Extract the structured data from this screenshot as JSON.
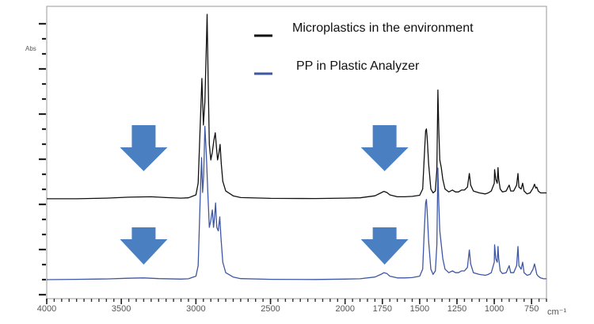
{
  "chart_data": {
    "type": "line",
    "xlabel": "cm⁻¹",
    "ylabel": "Abs",
    "xlim": [
      4000,
      650
    ],
    "ylim": [
      0,
      1.0
    ],
    "x_ticks": [
      4000,
      3500,
      3000,
      2500,
      2000,
      1750,
      1500,
      1250,
      1000,
      750
    ],
    "grid": false,
    "legend_position": "top-right",
    "series": [
      {
        "name": "Microplastics in the environment",
        "color": "#111111",
        "offset": 0.46,
        "points": [
          [
            4000,
            0.0
          ],
          [
            3800,
            0.0
          ],
          [
            3600,
            0.003
          ],
          [
            3450,
            0.008
          ],
          [
            3300,
            0.01
          ],
          [
            3200,
            0.006
          ],
          [
            3100,
            0.003
          ],
          [
            3050,
            0.005
          ],
          [
            3000,
            0.02
          ],
          [
            2985,
            0.08
          ],
          [
            2970,
            0.4
          ],
          [
            2960,
            0.62
          ],
          [
            2950,
            0.38
          ],
          [
            2940,
            0.5
          ],
          [
            2930,
            0.78
          ],
          [
            2925,
            0.95
          ],
          [
            2918,
            0.62
          ],
          [
            2910,
            0.28
          ],
          [
            2900,
            0.2
          ],
          [
            2890,
            0.24
          ],
          [
            2880,
            0.3
          ],
          [
            2870,
            0.34
          ],
          [
            2862,
            0.26
          ],
          [
            2855,
            0.2
          ],
          [
            2845,
            0.24
          ],
          [
            2838,
            0.28
          ],
          [
            2830,
            0.18
          ],
          [
            2820,
            0.09
          ],
          [
            2800,
            0.04
          ],
          [
            2750,
            0.015
          ],
          [
            2700,
            0.006
          ],
          [
            2500,
            0.002
          ],
          [
            2200,
            0.001
          ],
          [
            2000,
            0.003
          ],
          [
            1900,
            0.005
          ],
          [
            1800,
            0.015
          ],
          [
            1760,
            0.03
          ],
          [
            1740,
            0.038
          ],
          [
            1720,
            0.032
          ],
          [
            1700,
            0.02
          ],
          [
            1650,
            0.01
          ],
          [
            1600,
            0.01
          ],
          [
            1550,
            0.012
          ],
          [
            1500,
            0.018
          ],
          [
            1480,
            0.05
          ],
          [
            1470,
            0.2
          ],
          [
            1460,
            0.35
          ],
          [
            1455,
            0.36
          ],
          [
            1450,
            0.32
          ],
          [
            1440,
            0.18
          ],
          [
            1425,
            0.05
          ],
          [
            1410,
            0.03
          ],
          [
            1395,
            0.04
          ],
          [
            1385,
            0.15
          ],
          [
            1378,
            0.56
          ],
          [
            1372,
            0.36
          ],
          [
            1365,
            0.2
          ],
          [
            1355,
            0.16
          ],
          [
            1345,
            0.1
          ],
          [
            1330,
            0.05
          ],
          [
            1305,
            0.035
          ],
          [
            1280,
            0.045
          ],
          [
            1260,
            0.035
          ],
          [
            1240,
            0.035
          ],
          [
            1220,
            0.045
          ],
          [
            1200,
            0.045
          ],
          [
            1180,
            0.06
          ],
          [
            1167,
            0.13
          ],
          [
            1158,
            0.07
          ],
          [
            1140,
            0.04
          ],
          [
            1100,
            0.03
          ],
          [
            1060,
            0.025
          ],
          [
            1040,
            0.03
          ],
          [
            1020,
            0.04
          ],
          [
            1000,
            0.08
          ],
          [
            998,
            0.15
          ],
          [
            990,
            0.1
          ],
          [
            980,
            0.08
          ],
          [
            975,
            0.16
          ],
          [
            970,
            0.1
          ],
          [
            960,
            0.05
          ],
          [
            945,
            0.035
          ],
          [
            920,
            0.04
          ],
          [
            900,
            0.07
          ],
          [
            890,
            0.04
          ],
          [
            870,
            0.04
          ],
          [
            850,
            0.07
          ],
          [
            841,
            0.13
          ],
          [
            835,
            0.06
          ],
          [
            820,
            0.05
          ],
          [
            810,
            0.08
          ],
          [
            800,
            0.04
          ],
          [
            780,
            0.025
          ],
          [
            760,
            0.03
          ],
          [
            740,
            0.055
          ],
          [
            730,
            0.075
          ],
          [
            722,
            0.055
          ],
          [
            715,
            0.06
          ],
          [
            705,
            0.04
          ],
          [
            690,
            0.03
          ],
          [
            670,
            0.03
          ],
          [
            650,
            0.03
          ]
        ]
      },
      {
        "name": "PP in Plastic Analyzer",
        "color": "#3e57a3",
        "offset": 0.0,
        "points": [
          [
            4000,
            0.0
          ],
          [
            3800,
            0.002
          ],
          [
            3600,
            0.004
          ],
          [
            3450,
            0.008
          ],
          [
            3350,
            0.01
          ],
          [
            3250,
            0.006
          ],
          [
            3100,
            0.003
          ],
          [
            3050,
            0.005
          ],
          [
            3000,
            0.02
          ],
          [
            2985,
            0.08
          ],
          [
            2970,
            0.5
          ],
          [
            2962,
            0.7
          ],
          [
            2955,
            0.5
          ],
          [
            2948,
            0.6
          ],
          [
            2940,
            0.88
          ],
          [
            2930,
            0.72
          ],
          [
            2920,
            0.5
          ],
          [
            2910,
            0.3
          ],
          [
            2900,
            0.34
          ],
          [
            2890,
            0.4
          ],
          [
            2882,
            0.3
          ],
          [
            2875,
            0.36
          ],
          [
            2868,
            0.44
          ],
          [
            2860,
            0.3
          ],
          [
            2850,
            0.28
          ],
          [
            2840,
            0.36
          ],
          [
            2832,
            0.24
          ],
          [
            2820,
            0.1
          ],
          [
            2800,
            0.04
          ],
          [
            2750,
            0.015
          ],
          [
            2700,
            0.006
          ],
          [
            2500,
            0.002
          ],
          [
            2200,
            0.001
          ],
          [
            2000,
            0.003
          ],
          [
            1900,
            0.005
          ],
          [
            1800,
            0.015
          ],
          [
            1760,
            0.03
          ],
          [
            1740,
            0.04
          ],
          [
            1720,
            0.035
          ],
          [
            1700,
            0.02
          ],
          [
            1650,
            0.01
          ],
          [
            1600,
            0.01
          ],
          [
            1550,
            0.012
          ],
          [
            1500,
            0.02
          ],
          [
            1480,
            0.06
          ],
          [
            1470,
            0.26
          ],
          [
            1460,
            0.44
          ],
          [
            1455,
            0.46
          ],
          [
            1450,
            0.4
          ],
          [
            1440,
            0.22
          ],
          [
            1425,
            0.06
          ],
          [
            1410,
            0.03
          ],
          [
            1395,
            0.05
          ],
          [
            1385,
            0.2
          ],
          [
            1378,
            0.64
          ],
          [
            1372,
            0.44
          ],
          [
            1365,
            0.28
          ],
          [
            1355,
            0.2
          ],
          [
            1345,
            0.12
          ],
          [
            1330,
            0.06
          ],
          [
            1305,
            0.04
          ],
          [
            1280,
            0.05
          ],
          [
            1260,
            0.04
          ],
          [
            1240,
            0.04
          ],
          [
            1220,
            0.05
          ],
          [
            1200,
            0.05
          ],
          [
            1180,
            0.07
          ],
          [
            1167,
            0.17
          ],
          [
            1158,
            0.09
          ],
          [
            1140,
            0.04
          ],
          [
            1100,
            0.03
          ],
          [
            1060,
            0.025
          ],
          [
            1040,
            0.03
          ],
          [
            1020,
            0.04
          ],
          [
            1000,
            0.1
          ],
          [
            998,
            0.2
          ],
          [
            990,
            0.12
          ],
          [
            980,
            0.1
          ],
          [
            975,
            0.19
          ],
          [
            970,
            0.12
          ],
          [
            960,
            0.05
          ],
          [
            945,
            0.035
          ],
          [
            920,
            0.04
          ],
          [
            900,
            0.08
          ],
          [
            890,
            0.04
          ],
          [
            870,
            0.04
          ],
          [
            850,
            0.08
          ],
          [
            841,
            0.19
          ],
          [
            835,
            0.08
          ],
          [
            820,
            0.06
          ],
          [
            810,
            0.1
          ],
          [
            800,
            0.04
          ],
          [
            780,
            0.025
          ],
          [
            760,
            0.03
          ],
          [
            740,
            0.06
          ],
          [
            730,
            0.09
          ],
          [
            722,
            0.06
          ],
          [
            715,
            0.03
          ],
          [
            705,
            0.02
          ],
          [
            690,
            0.01
          ],
          [
            670,
            0.005
          ],
          [
            650,
            0.005
          ]
        ]
      }
    ],
    "annotations": [
      {
        "type": "down-arrow",
        "x": 3350,
        "row": "upper",
        "color": "#4a7fc1"
      },
      {
        "type": "down-arrow",
        "x": 3350,
        "row": "lower",
        "color": "#4a7fc1"
      },
      {
        "type": "down-arrow",
        "x": 1735,
        "row": "upper",
        "color": "#4a7fc1"
      },
      {
        "type": "down-arrow",
        "x": 1735,
        "row": "lower",
        "color": "#4a7fc1"
      }
    ]
  }
}
